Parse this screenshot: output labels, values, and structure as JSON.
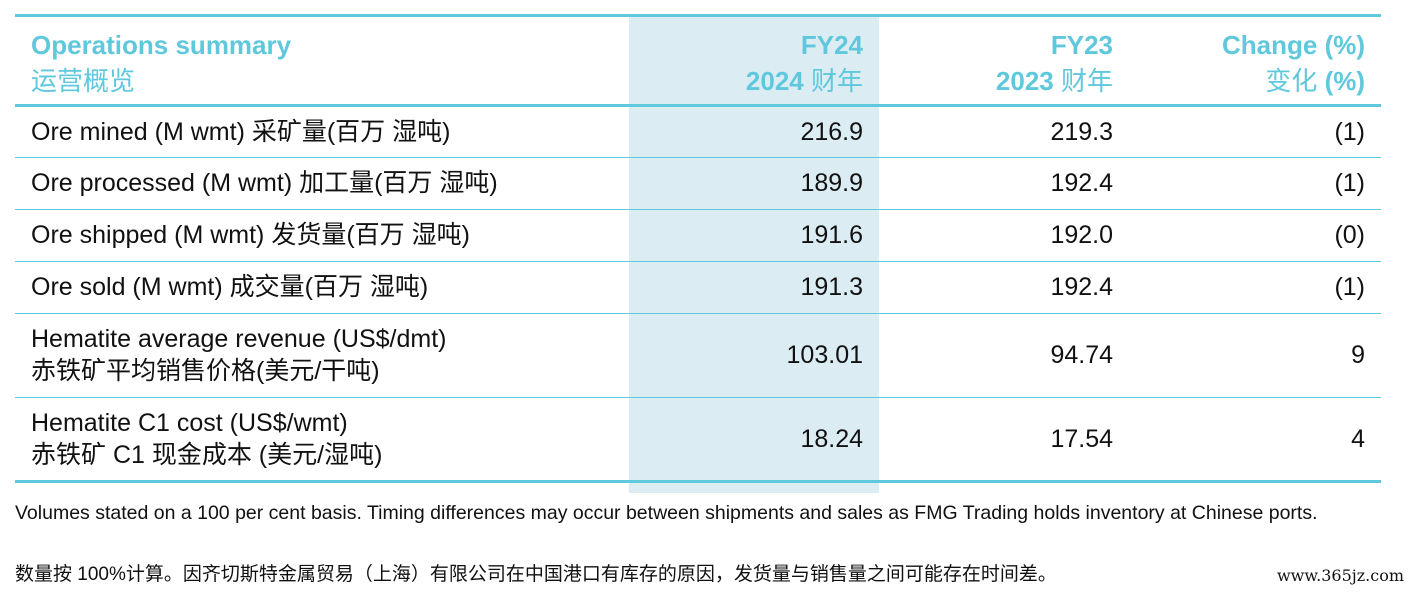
{
  "table": {
    "header": {
      "col1_en": "Operations summary",
      "col1_cn": "运营概览",
      "col2_en": "FY24",
      "col2_cn_num": "2024",
      "col2_cn_txt": " 财年",
      "col3_en": "FY23",
      "col3_cn_num": "2023",
      "col3_cn_txt": " 财年",
      "col4_en": "Change (%)",
      "col4_cn_txt": "变化 ",
      "col4_cn_num": "(%)"
    },
    "rows": [
      {
        "label": "Ore mined (M wmt) 采矿量(百万 湿吨)",
        "fy24": "216.9",
        "fy23": "219.3",
        "change": "(1)"
      },
      {
        "label": "Ore processed (M wmt) 加工量(百万 湿吨)",
        "fy24": "189.9",
        "fy23": "192.4",
        "change": "(1)"
      },
      {
        "label": "Ore shipped (M wmt) 发货量(百万 湿吨)",
        "fy24": "191.6",
        "fy23": "192.0",
        "change": "(0)"
      },
      {
        "label": "Ore sold (M wmt) 成交量(百万 湿吨)",
        "fy24": "191.3",
        "fy23": "192.4",
        "change": "(1)"
      },
      {
        "label": "Hematite average revenue (US$/dmt)",
        "label_cn": "赤铁矿平均销售价格(美元/干吨)",
        "fy24": "103.01",
        "fy23": "94.74",
        "change": "9"
      },
      {
        "label": "Hematite C1 cost (US$/wmt)",
        "label_cn": "赤铁矿 C1 现金成本 (美元/湿吨)",
        "fy24": "18.24",
        "fy23": "17.54",
        "change": "4"
      }
    ]
  },
  "notes": {
    "en": "Volumes stated on a 100 per cent basis. Timing differences may occur between shipments and sales as FMG Trading holds inventory at Chinese ports.",
    "cn": "数量按 100%计算。因齐切斯特金属贸易（上海）有限公司在中国港口有库存的原因，发货量与销售量之间可能存在时间差。"
  },
  "watermark": "www.365jz.com",
  "colors": {
    "accent": "#5fc8dc",
    "highlight": "#dcecf3"
  }
}
